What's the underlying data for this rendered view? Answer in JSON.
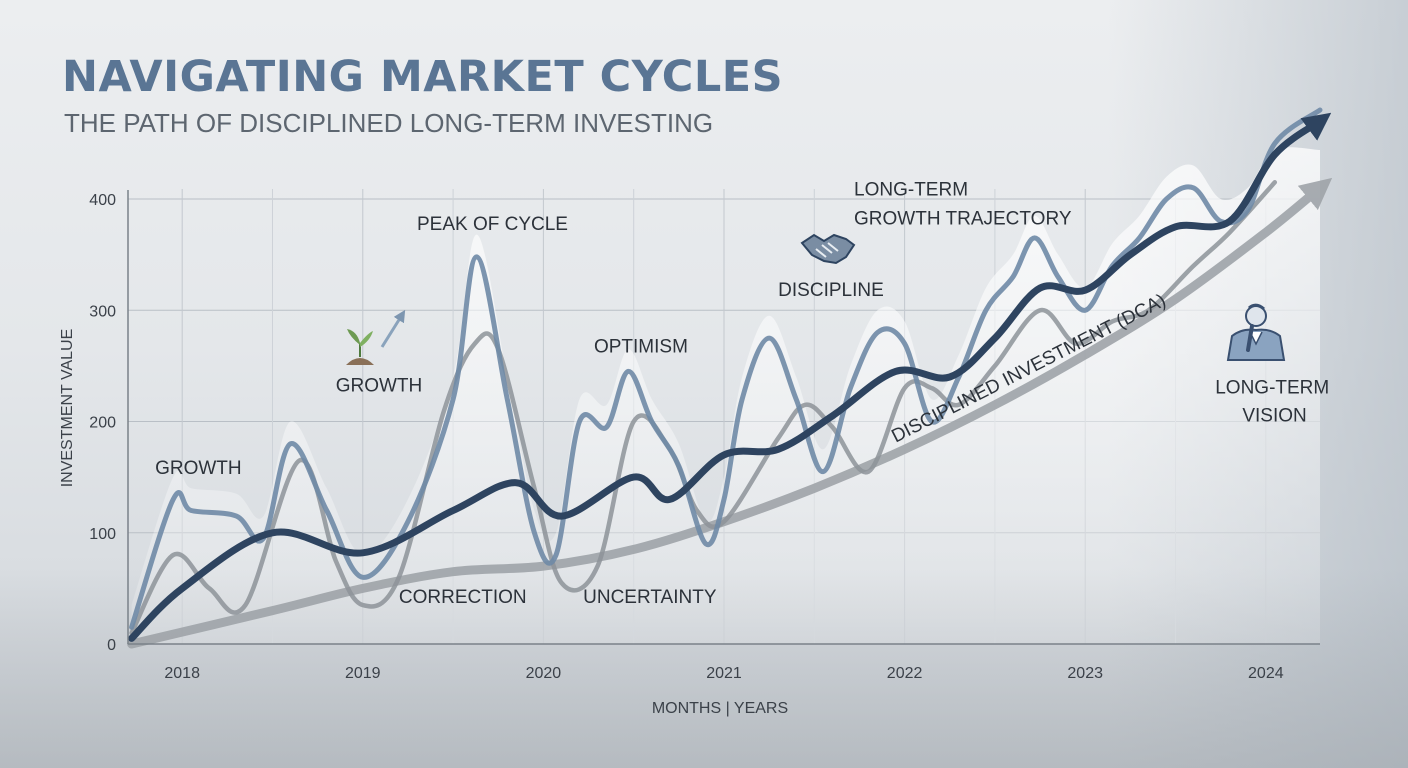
{
  "header": {
    "title": "NAVIGATING MARKET CYCLES",
    "subtitle": "THE PATH OF DISCIPLINED LONG-TERM INVESTING"
  },
  "colors": {
    "primary": "#2e4460",
    "secondary": "#6f8aa6",
    "tertiary": "#8d9399",
    "trend": "#9fa4a9",
    "title": "#5a7594"
  },
  "chart_data": {
    "type": "line",
    "xlabel": "MONTHS | YEARS",
    "ylabel": "INVESTMENT VALUE",
    "xlim": [
      2017.7,
      2024.3
    ],
    "ylim": [
      0,
      400
    ],
    "x_ticks": [
      2018,
      2019,
      2020,
      2021,
      2022,
      2023,
      2024
    ],
    "y_ticks": [
      0,
      100,
      200,
      300,
      400
    ],
    "grid": true,
    "series": [
      {
        "style": "primary",
        "x": [
          2017.72,
          2018,
          2018.5,
          2019,
          2019.5,
          2019.85,
          2020.1,
          2020.5,
          2020.7,
          2021,
          2021.3,
          2021.6,
          2021.95,
          2022.25,
          2022.5,
          2022.75,
          2023,
          2023.25,
          2023.5,
          2023.8,
          2024.05,
          2024.3
        ],
        "values": [
          5,
          50,
          100,
          82,
          120,
          145,
          115,
          150,
          130,
          170,
          175,
          205,
          245,
          240,
          275,
          320,
          318,
          350,
          375,
          380,
          440,
          470
        ]
      },
      {
        "style": "secondary",
        "x": [
          2017.72,
          2017.95,
          2018.05,
          2018.3,
          2018.45,
          2018.6,
          2018.8,
          2019,
          2019.25,
          2019.5,
          2019.63,
          2019.8,
          2019.95,
          2020.07,
          2020.2,
          2020.35,
          2020.47,
          2020.6,
          2020.75,
          2020.9,
          2021,
          2021.1,
          2021.25,
          2021.4,
          2021.55,
          2021.7,
          2021.85,
          2022,
          2022.15,
          2022.3,
          2022.45,
          2022.6,
          2022.72,
          2022.85,
          2023,
          2023.15,
          2023.3,
          2023.45,
          2023.6,
          2023.75,
          2023.9,
          2024.05,
          2024.3
        ],
        "values": [
          15,
          130,
          120,
          115,
          95,
          180,
          120,
          60,
          110,
          220,
          348,
          220,
          100,
          80,
          200,
          195,
          245,
          200,
          160,
          90,
          130,
          220,
          275,
          220,
          155,
          230,
          280,
          270,
          200,
          240,
          300,
          330,
          365,
          330,
          300,
          340,
          365,
          400,
          410,
          380,
          390,
          450,
          480
        ]
      },
      {
        "style": "tertiary",
        "x": [
          2017.72,
          2017.95,
          2018.15,
          2018.35,
          2018.65,
          2018.85,
          2019,
          2019.2,
          2019.45,
          2019.62,
          2019.75,
          2019.95,
          2020.1,
          2020.3,
          2020.5,
          2020.7,
          2020.85,
          2021,
          2021.3,
          2021.45,
          2021.6,
          2021.8,
          2022,
          2022.15,
          2022.3,
          2022.5,
          2022.75,
          2022.95,
          2023.15,
          2023.35,
          2023.6,
          2023.8,
          2024.05
        ],
        "values": [
          10,
          80,
          50,
          35,
          165,
          75,
          35,
          60,
          210,
          270,
          265,
          140,
          55,
          70,
          200,
          175,
          120,
          110,
          185,
          215,
          195,
          155,
          230,
          230,
          215,
          250,
          300,
          270,
          290,
          300,
          340,
          370,
          415
        ]
      },
      {
        "style": "trend",
        "label": "DISCIPLINED INVESTMENT (DCA)",
        "x": [
          2017.72,
          2018.5,
          2019,
          2019.5,
          2020,
          2020.5,
          2021,
          2021.5,
          2022,
          2022.5,
          2023,
          2023.5,
          2024,
          2024.3
        ],
        "values": [
          0,
          30,
          50,
          65,
          70,
          85,
          110,
          140,
          175,
          215,
          260,
          310,
          370,
          410
        ]
      }
    ],
    "annotations": [
      {
        "text": "GROWTH",
        "x": 2017.85,
        "y": 153
      },
      {
        "text": "GROWTH",
        "x": 2018.85,
        "y": 227
      },
      {
        "text": "PEAK OF CYCLE",
        "x": 2019.3,
        "y": 372
      },
      {
        "text": "OPTIMISM",
        "x": 2020.28,
        "y": 262
      },
      {
        "text": "DISCIPLINE",
        "x": 2021.3,
        "y": 313
      },
      {
        "text": "LONG-TERM",
        "x": 2021.72,
        "y": 403
      },
      {
        "text": "GROWTH TRAJECTORY",
        "x": 2021.72,
        "y": 377
      },
      {
        "text": "CORRECTION",
        "x": 2019.2,
        "y": 37
      },
      {
        "text": "UNCERTAINTY",
        "x": 2020.22,
        "y": 37
      },
      {
        "text": "LONG-TERM",
        "x": 2023.72,
        "y": 225
      },
      {
        "text": "VISION",
        "x": 2023.87,
        "y": 200
      }
    ]
  }
}
